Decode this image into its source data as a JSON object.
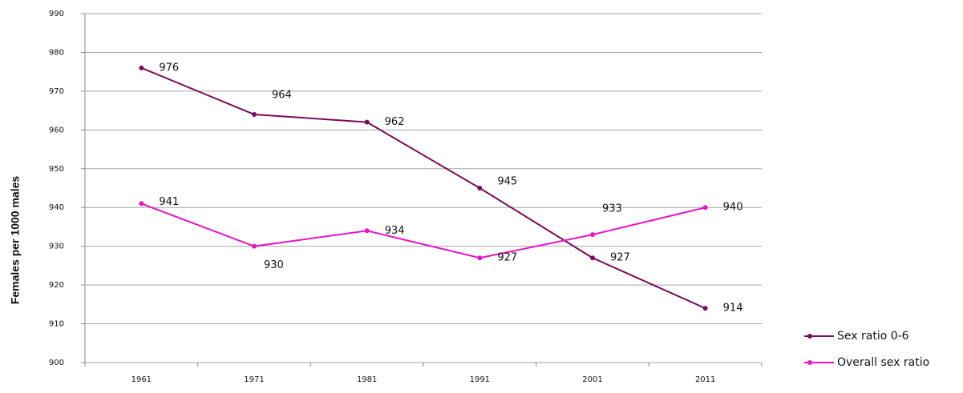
{
  "chart_data": {
    "type": "line",
    "y_label": "Females per 1000 males",
    "categories": [
      "1961",
      "1971",
      "1981",
      "1991",
      "2001",
      "2011"
    ],
    "series": [
      {
        "name": "Sex ratio 0-6",
        "color": "#7a0c5c",
        "values": [
          976,
          964,
          962,
          945,
          927,
          914
        ]
      },
      {
        "name": "Overall sex ratio",
        "color": "#e815c4",
        "values": [
          941,
          930,
          934,
          927,
          933,
          940
        ]
      }
    ],
    "ylim": [
      900,
      990
    ],
    "yticks": [
      900,
      910,
      920,
      930,
      940,
      950,
      960,
      970,
      980,
      990
    ],
    "grid": true,
    "legend": "lower right"
  }
}
